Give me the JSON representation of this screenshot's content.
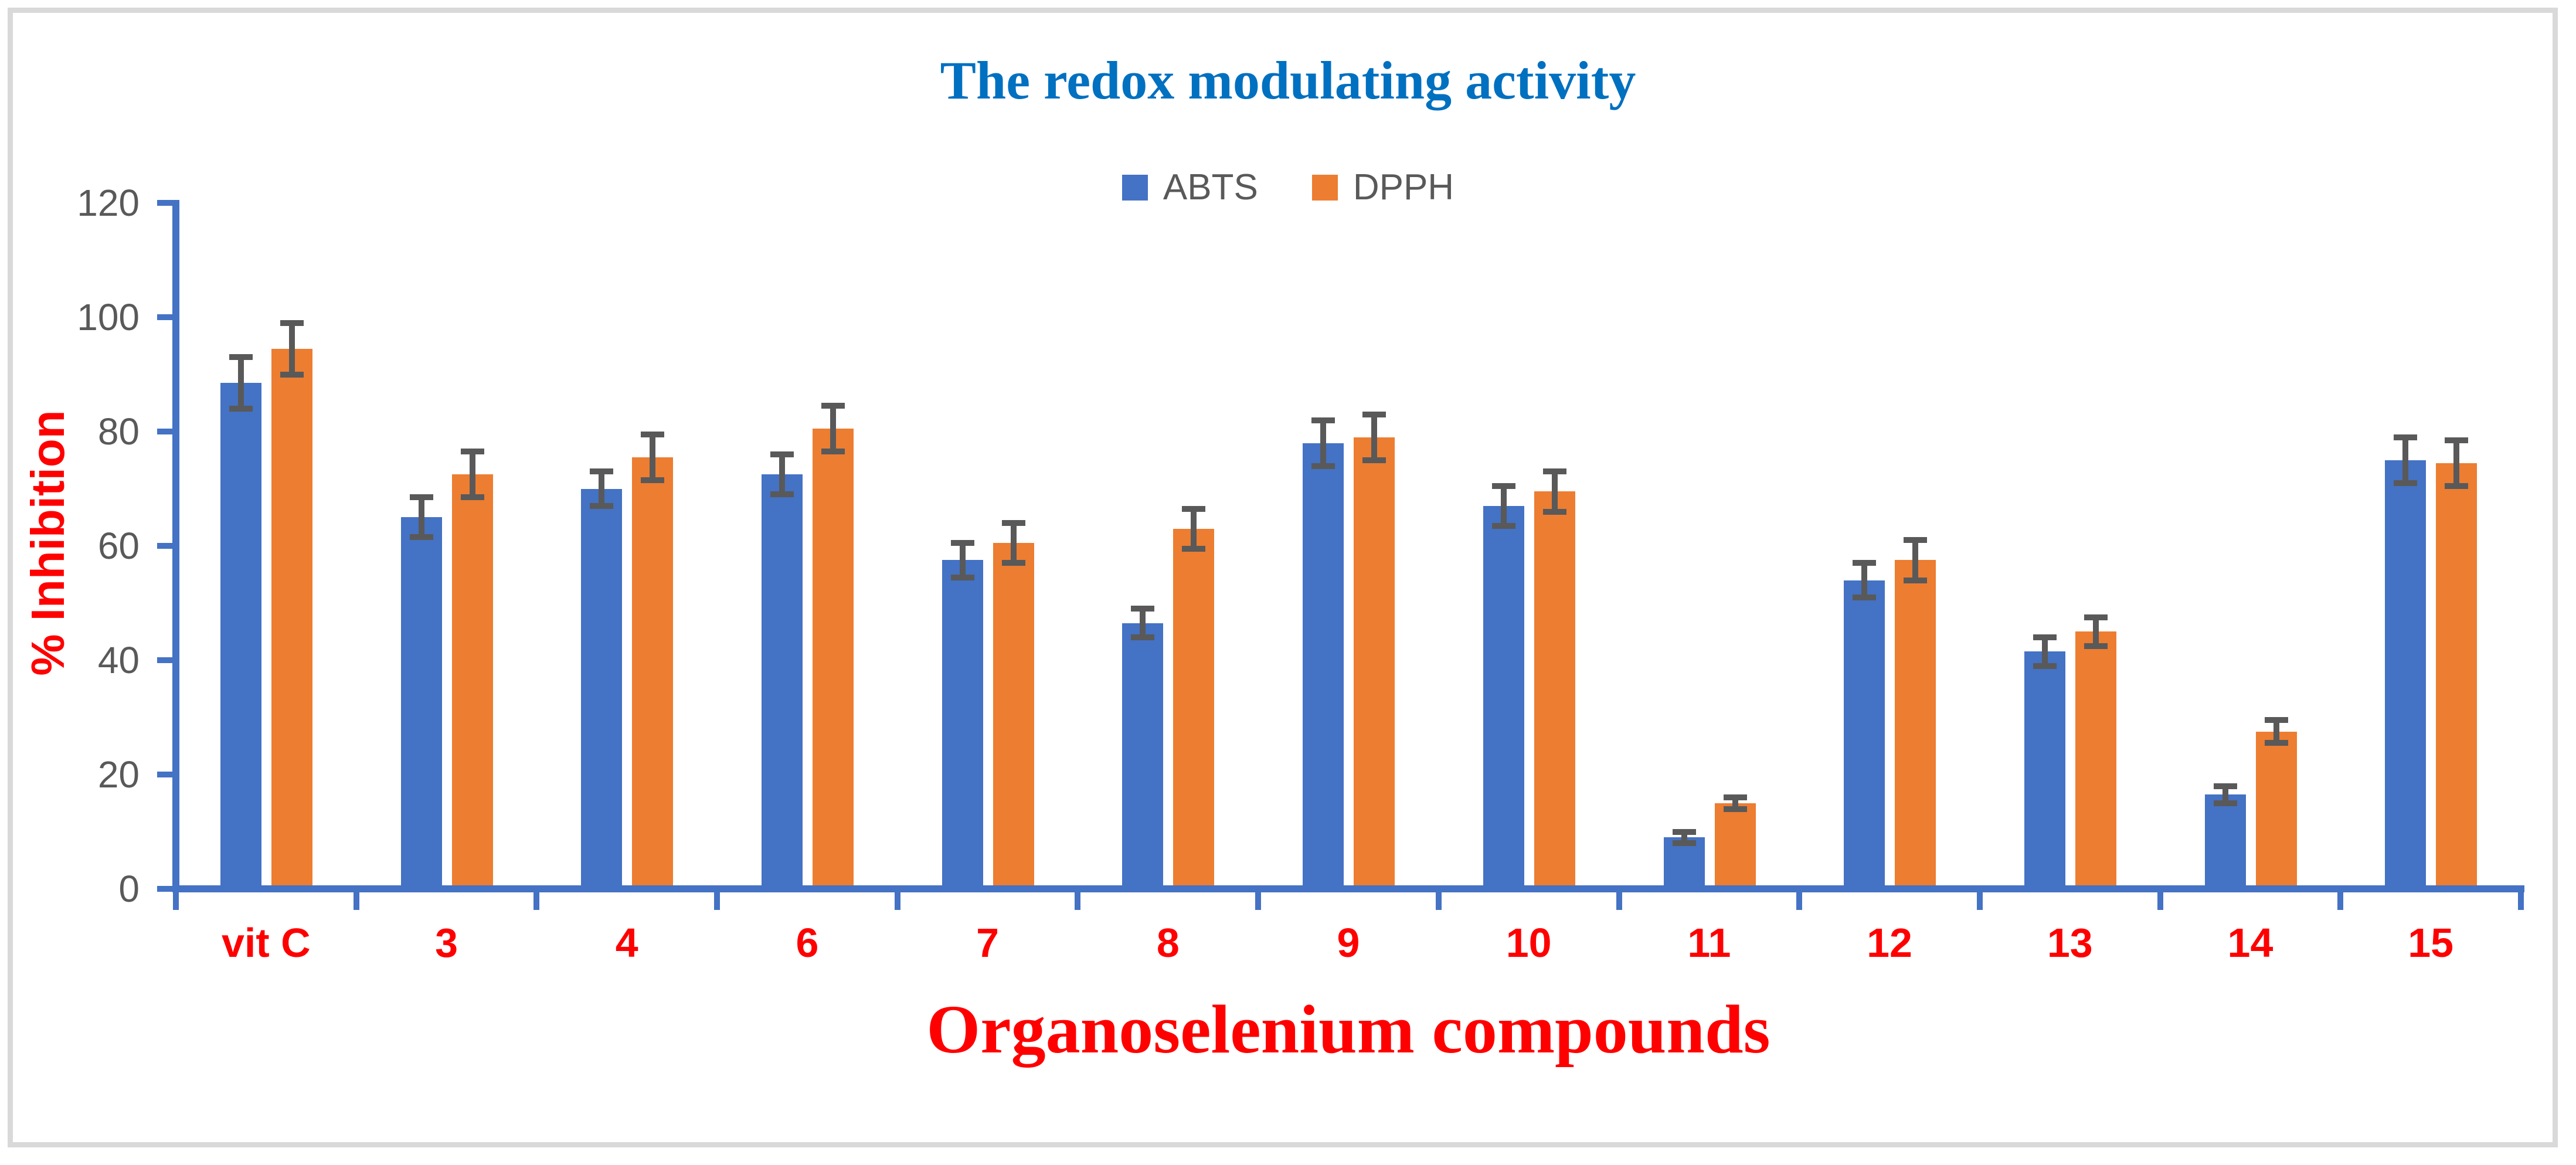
{
  "chart_data": {
    "type": "bar",
    "title": "The redox modulating activity",
    "title_color": "#0070C0",
    "xlabel": "Organoselenium compounds",
    "ylabel": "% Inhibition",
    "axis_title_color": "#FF0000",
    "category_label_color": "#FF0000",
    "tick_label_color": "#595959",
    "axis_line_color": "#4472C4",
    "error_bar_color": "#595959",
    "ylim": [
      0,
      120
    ],
    "ytick_step": 20,
    "ytick_labels": [
      "0",
      "20",
      "40",
      "60",
      "80",
      "100",
      "120"
    ],
    "grid": false,
    "legend_position": "top-center",
    "error_bars": true,
    "categories": [
      "vit C",
      "3",
      "4",
      "6",
      "7",
      "8",
      "9",
      "10",
      "11",
      "12",
      "13",
      "14",
      "15"
    ],
    "series": [
      {
        "name": "ABTS",
        "color": "#4472C4",
        "values": [
          88.5,
          65,
          70,
          72.5,
          57.5,
          46.5,
          78,
          67,
          9,
          54,
          41.5,
          16.5,
          75
        ],
        "errors": [
          4.5,
          3.5,
          3,
          3.5,
          3,
          2.5,
          4,
          3.5,
          1,
          3,
          2.5,
          1.5,
          4
        ]
      },
      {
        "name": "DPPH",
        "color": "#ED7D31",
        "values": [
          94.5,
          72.5,
          75.5,
          80.5,
          60.5,
          63,
          79,
          69.5,
          15,
          57.5,
          45,
          27.5,
          74.5
        ],
        "errors": [
          4.5,
          4,
          4,
          4,
          3.5,
          3.5,
          4,
          3.5,
          1,
          3.5,
          2.5,
          2,
          4
        ]
      }
    ]
  }
}
